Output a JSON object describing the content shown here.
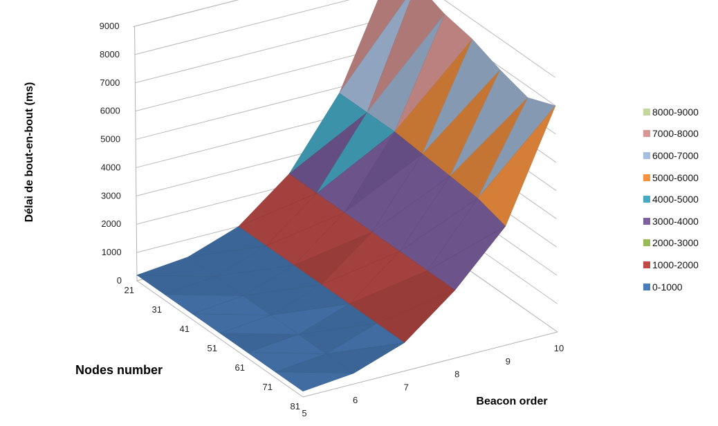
{
  "chart_data": {
    "type": "surface",
    "ylabel": "Délai de bout-en-bout (ms)",
    "node_axis_label": "Nodes number",
    "beacon_axis_label": "Beacon order",
    "z_ticks": [
      "0",
      "1000",
      "2000",
      "3000",
      "4000",
      "5000",
      "6000",
      "7000",
      "8000",
      "9000"
    ],
    "zlim": [
      0,
      9000
    ],
    "nodes": [
      "21",
      "31",
      "41",
      "51",
      "61",
      "71",
      "81"
    ],
    "beacon_order": [
      "5",
      "6",
      "7",
      "8",
      "9",
      "10"
    ],
    "values": [
      [
        200,
        380,
        1000,
        2400,
        4800,
        8600
      ],
      [
        200,
        380,
        1000,
        2400,
        4800,
        8900
      ],
      [
        200,
        380,
        1000,
        2400,
        4800,
        8500
      ],
      [
        200,
        380,
        1000,
        2400,
        4700,
        8300
      ],
      [
        200,
        380,
        1000,
        2400,
        4600,
        7900
      ],
      [
        200,
        380,
        1000,
        2400,
        4500,
        7600
      ],
      [
        200,
        380,
        1000,
        2400,
        4200,
        8000
      ]
    ],
    "bands": [
      {
        "label": "0-1000",
        "min": 0,
        "max": 1000,
        "color": "#4a7ebb"
      },
      {
        "label": "1000-2000",
        "min": 1000,
        "max": 2000,
        "color": "#be4b48"
      },
      {
        "label": "2000-3000",
        "min": 2000,
        "max": 3000,
        "color": "#98b954"
      },
      {
        "label": "3000-4000",
        "min": 3000,
        "max": 4000,
        "color": "#7d60a0"
      },
      {
        "label": "4000-5000",
        "min": 4000,
        "max": 5000,
        "color": "#46aac5"
      },
      {
        "label": "5000-6000",
        "min": 5000,
        "max": 6000,
        "color": "#f69240"
      },
      {
        "label": "6000-7000",
        "min": 6000,
        "max": 7000,
        "color": "#a7bfde"
      },
      {
        "label": "7000-8000",
        "min": 7000,
        "max": 8000,
        "color": "#d99694"
      },
      {
        "label": "8000-9000",
        "min": 8000,
        "max": 9000,
        "color": "#c3d69b"
      }
    ],
    "grid": true,
    "legend_position": "right"
  }
}
